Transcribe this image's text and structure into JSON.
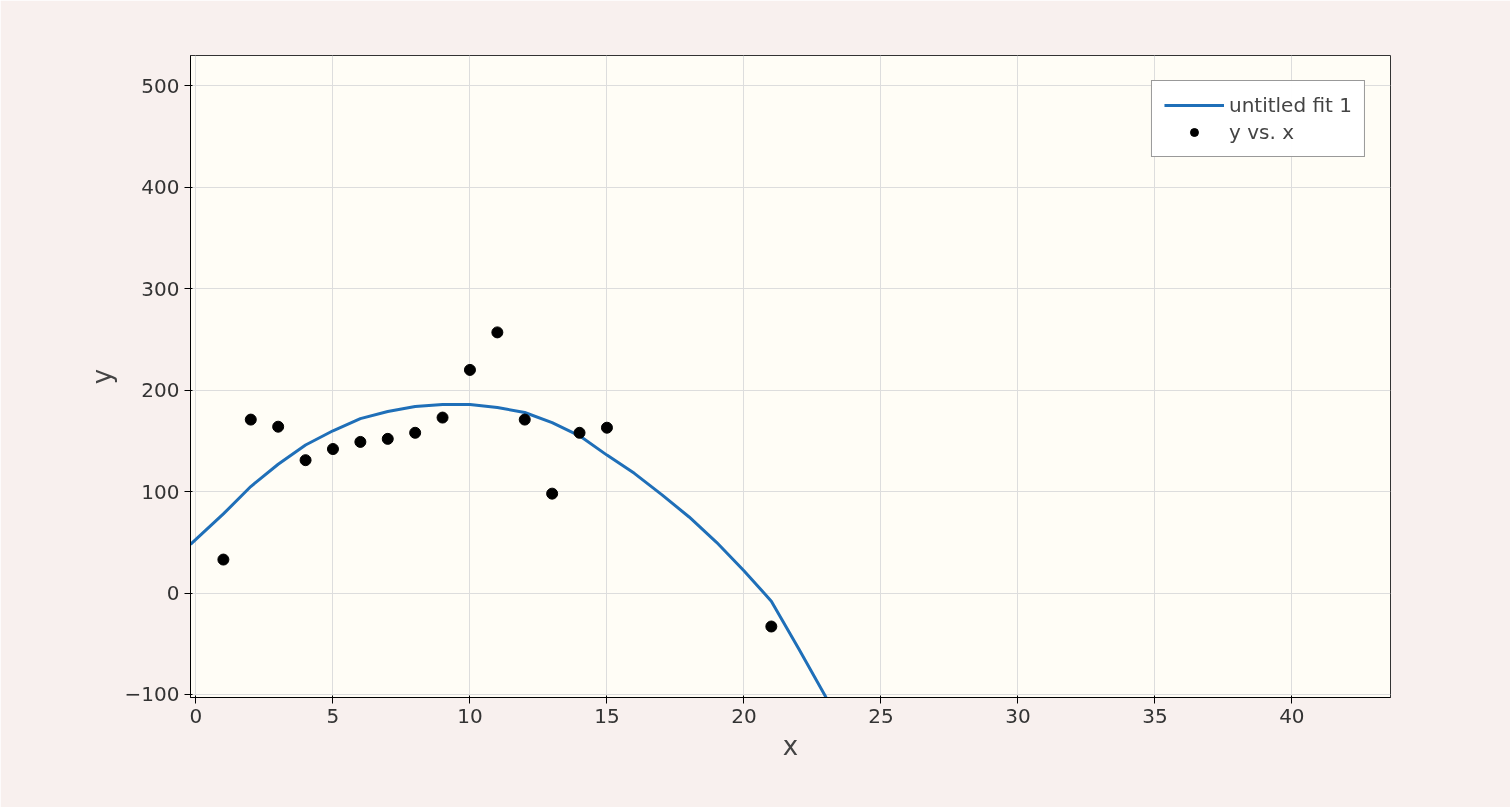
{
  "chart_data": {
    "type": "scatter",
    "xlabel": "x",
    "ylabel": "y",
    "xlim": [
      -0.2,
      43.6
    ],
    "ylim": [
      -103,
      530
    ],
    "xticks": [
      0,
      5,
      10,
      15,
      20,
      25,
      30,
      35,
      40
    ],
    "yticks": [
      -100,
      0,
      100,
      200,
      300,
      400,
      500
    ],
    "grid": true,
    "legend": "top right",
    "marker": "circle",
    "series": [
      {
        "name": "untitled fit 1",
        "type": "line",
        "color": "#1f6fb8",
        "line_style": "solid",
        "marker": "none",
        "x": [
          -0.2,
          1,
          2,
          3,
          4,
          5,
          6,
          7,
          8,
          9,
          10,
          11,
          12,
          13,
          14,
          15,
          16,
          17,
          18,
          19,
          20,
          21,
          22,
          23
        ],
        "values": [
          48,
          78,
          105,
          127,
          146,
          160,
          172,
          179,
          184,
          186,
          186,
          183,
          178,
          168,
          155,
          136,
          118,
          97,
          75,
          50,
          22,
          -8,
          -55,
          -103
        ]
      },
      {
        "name": "y vs. x",
        "color": "#000000",
        "x": [
          1,
          2,
          3,
          4,
          5,
          6,
          7,
          8,
          9,
          10,
          11,
          12,
          13,
          14,
          15,
          21
        ],
        "values": [
          33,
          171,
          164,
          131,
          142,
          149,
          152,
          158,
          173,
          220,
          257,
          171,
          98,
          158,
          163,
          -33
        ]
      }
    ]
  }
}
